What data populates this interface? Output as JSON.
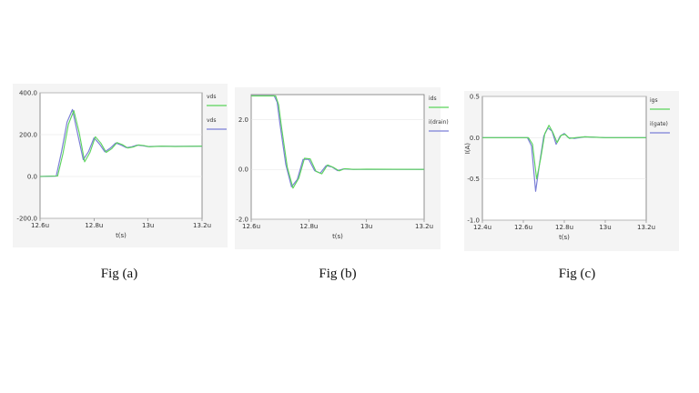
{
  "chart_data": [
    {
      "type": "line",
      "caption": "Fig (a)",
      "xlabel": "t(s)",
      "ylabel": "",
      "xlim": [
        12.6,
        13.2
      ],
      "ylim": [
        -200,
        400
      ],
      "xticks": [
        {
          "v": 12.6,
          "label": "12.6u"
        },
        {
          "v": 12.8,
          "label": "12.8u"
        },
        {
          "v": 13.0,
          "label": "13u"
        },
        {
          "v": 13.2,
          "label": "13.2u"
        }
      ],
      "yticks": [
        {
          "v": 400,
          "label": "400.0"
        },
        {
          "v": 200,
          "label": "200.0"
        },
        {
          "v": 0,
          "label": "0.0"
        },
        {
          "v": -200,
          "label": "-200.0"
        }
      ],
      "legend": [
        "vds",
        "vds"
      ],
      "series": [
        {
          "color": "#7b7fd6",
          "x": [
            12.6,
            12.66,
            12.68,
            12.7,
            12.72,
            12.74,
            12.76,
            12.78,
            12.8,
            12.82,
            12.84,
            12.86,
            12.88,
            12.9,
            12.92,
            12.94,
            12.96,
            12.98,
            13.0,
            13.05,
            13.1,
            13.2
          ],
          "y": [
            0,
            2,
            120,
            260,
            320,
            200,
            80,
            120,
            185,
            155,
            118,
            135,
            160,
            150,
            138,
            142,
            150,
            147,
            143,
            145,
            144,
            145
          ]
        },
        {
          "color": "#5ad45a",
          "x": [
            12.6,
            12.665,
            12.685,
            12.705,
            12.725,
            12.745,
            12.765,
            12.785,
            12.805,
            12.825,
            12.845,
            12.865,
            12.885,
            12.905,
            12.925,
            12.945,
            12.965,
            12.985,
            13.005,
            13.05,
            13.1,
            13.2
          ],
          "y": [
            0,
            2,
            110,
            250,
            315,
            210,
            70,
            115,
            190,
            160,
            115,
            132,
            162,
            152,
            136,
            141,
            151,
            148,
            142,
            145,
            143,
            145
          ]
        }
      ]
    },
    {
      "type": "line",
      "caption": "Fig (b)",
      "xlabel": "t(s)",
      "ylabel": "",
      "xlim": [
        12.6,
        13.2
      ],
      "ylim": [
        -2.0,
        3.0
      ],
      "xticks": [
        {
          "v": 12.6,
          "label": "12.6u"
        },
        {
          "v": 12.8,
          "label": "12.8u"
        },
        {
          "v": 13.0,
          "label": "13u"
        },
        {
          "v": 13.2,
          "label": "13.2u"
        }
      ],
      "yticks": [
        {
          "v": 2.0,
          "label": "2.0"
        },
        {
          "v": 0.0,
          "label": "0.0"
        },
        {
          "v": -2.0,
          "label": "-2.0"
        }
      ],
      "legend": [
        "ids",
        "i(drain)"
      ],
      "series": [
        {
          "color": "#7b7fd6",
          "x": [
            12.6,
            12.68,
            12.69,
            12.7,
            12.72,
            12.74,
            12.76,
            12.78,
            12.8,
            12.82,
            12.84,
            12.86,
            12.88,
            12.9,
            12.92,
            12.95,
            13.0,
            13.2
          ],
          "y": [
            2.95,
            2.95,
            2.7,
            1.8,
            0.2,
            -0.7,
            -0.4,
            0.4,
            0.4,
            -0.05,
            -0.15,
            0.15,
            0.1,
            -0.05,
            0.02,
            0.0,
            0.0,
            0.0
          ]
        },
        {
          "color": "#5ad45a",
          "x": [
            12.6,
            12.685,
            12.695,
            12.705,
            12.725,
            12.745,
            12.765,
            12.785,
            12.805,
            12.825,
            12.845,
            12.865,
            12.885,
            12.905,
            12.925,
            12.955,
            13.0,
            13.2
          ],
          "y": [
            2.95,
            2.95,
            2.6,
            1.7,
            0.1,
            -0.75,
            -0.35,
            0.45,
            0.42,
            -0.08,
            -0.18,
            0.18,
            0.08,
            -0.06,
            0.03,
            0.0,
            0.01,
            0.0
          ]
        }
      ]
    },
    {
      "type": "line",
      "caption": "Fig (c)",
      "xlabel": "t(s)",
      "ylabel": "I(A)",
      "xlim": [
        12.4,
        13.2
      ],
      "ylim": [
        -1.0,
        0.5
      ],
      "xticks": [
        {
          "v": 12.4,
          "label": "12.4u"
        },
        {
          "v": 12.6,
          "label": "12.6u"
        },
        {
          "v": 12.8,
          "label": "12.8u"
        },
        {
          "v": 13.0,
          "label": "13u"
        },
        {
          "v": 13.2,
          "label": "13.2u"
        }
      ],
      "yticks": [
        {
          "v": 0.5,
          "label": "0.5"
        },
        {
          "v": 0.0,
          "label": "0.0"
        },
        {
          "v": -0.5,
          "label": "-0.5"
        },
        {
          "v": -1.0,
          "label": "-1.0"
        }
      ],
      "legend": [
        "igs",
        "i(gate)"
      ],
      "series": [
        {
          "color": "#7b7fd6",
          "x": [
            12.4,
            12.62,
            12.64,
            12.66,
            12.68,
            12.7,
            12.72,
            12.74,
            12.76,
            12.78,
            12.8,
            12.82,
            12.85,
            12.9,
            13.0,
            13.2
          ],
          "y": [
            0,
            0,
            -0.1,
            -0.65,
            -0.3,
            0.02,
            0.12,
            0.08,
            -0.08,
            0.02,
            0.05,
            0.0,
            -0.01,
            0.01,
            0.0,
            0.0
          ]
        },
        {
          "color": "#5ad45a",
          "x": [
            12.4,
            12.625,
            12.645,
            12.665,
            12.685,
            12.705,
            12.725,
            12.745,
            12.765,
            12.785,
            12.805,
            12.825,
            12.855,
            12.9,
            13.0,
            13.2
          ],
          "y": [
            0,
            0,
            -0.08,
            -0.5,
            -0.25,
            0.05,
            0.15,
            0.06,
            -0.06,
            0.03,
            0.04,
            -0.01,
            0.0,
            0.01,
            0.0,
            0.0
          ]
        }
      ]
    }
  ]
}
